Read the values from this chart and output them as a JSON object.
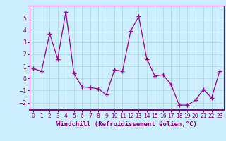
{
  "x": [
    0,
    1,
    2,
    3,
    4,
    5,
    6,
    7,
    8,
    9,
    10,
    11,
    12,
    13,
    14,
    15,
    16,
    17,
    18,
    19,
    20,
    21,
    22,
    23
  ],
  "y": [
    0.8,
    0.6,
    3.7,
    1.6,
    5.5,
    0.4,
    -0.7,
    -0.75,
    -0.85,
    -1.35,
    0.7,
    0.6,
    3.9,
    5.1,
    1.6,
    0.2,
    0.3,
    -0.5,
    -2.2,
    -2.2,
    -1.8,
    -0.9,
    -1.6,
    0.6
  ],
  "line_color": "#990099",
  "marker": "+",
  "markersize": 4,
  "linewidth": 0.9,
  "xlabel": "Windchill (Refroidissement éolien,°C)",
  "xlabel_fontsize": 6.5,
  "ylim": [
    -2.6,
    6.0
  ],
  "xlim": [
    -0.5,
    23.5
  ],
  "yticks": [
    -2,
    -1,
    0,
    1,
    2,
    3,
    4,
    5
  ],
  "xticks": [
    0,
    1,
    2,
    3,
    4,
    5,
    6,
    7,
    8,
    9,
    10,
    11,
    12,
    13,
    14,
    15,
    16,
    17,
    18,
    19,
    20,
    21,
    22,
    23
  ],
  "grid_color": "#aadddd",
  "bg_color": "#cceeff",
  "tick_fontsize": 5.5,
  "tick_color": "#880088",
  "spine_color": "#880088"
}
